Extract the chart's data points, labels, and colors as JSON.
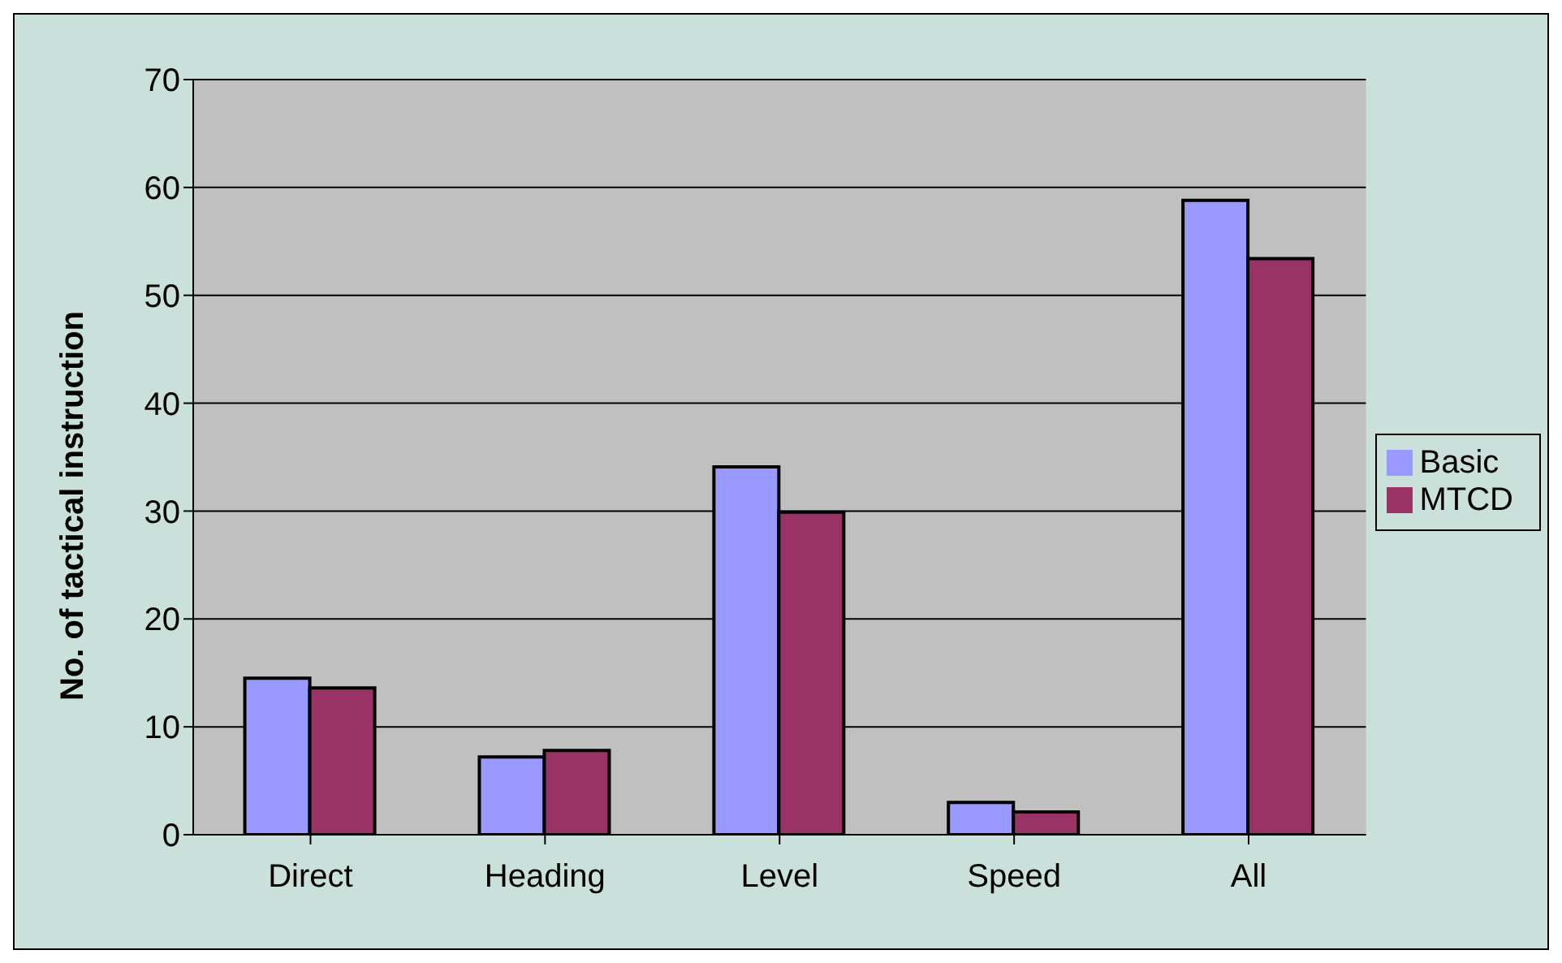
{
  "chart_data": {
    "type": "bar",
    "ylabel": "No. of tactical instruction",
    "categories": [
      "Direct",
      "Heading",
      "Level",
      "Speed",
      "All"
    ],
    "series": [
      {
        "name": "Basic",
        "color": "#9999ff",
        "values": [
          14.5,
          7.2,
          34.1,
          3.0,
          58.8
        ]
      },
      {
        "name": "MTCD",
        "color": "#993366",
        "values": [
          13.6,
          7.8,
          29.9,
          2.1,
          53.4
        ]
      }
    ],
    "ylim": [
      0,
      70
    ],
    "yticks": [
      0,
      10,
      20,
      30,
      40,
      50,
      60,
      70
    ],
    "grid": "y",
    "legend": "right"
  }
}
